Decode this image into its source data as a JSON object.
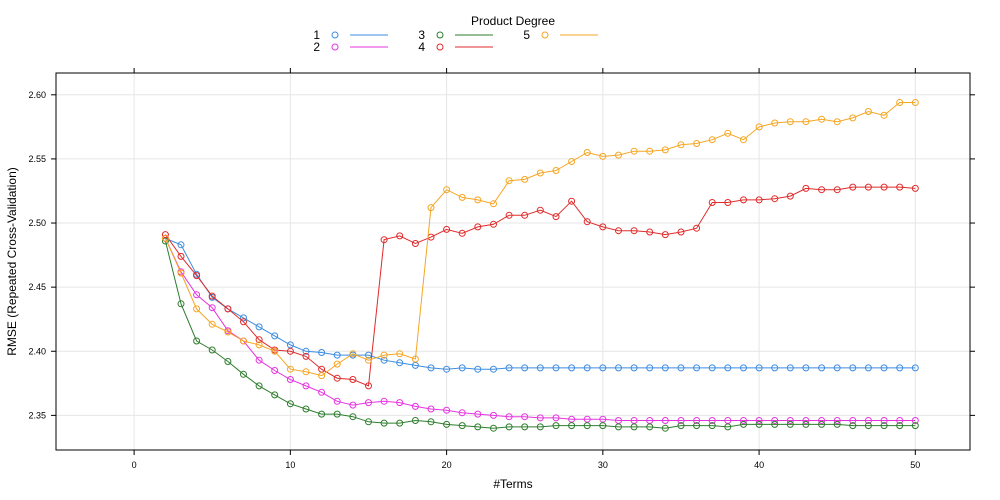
{
  "chart_data": {
    "type": "line",
    "xlabel": "#Terms",
    "ylabel": "RMSE (Repeated Cross-Validation)",
    "xlim": [
      -5,
      53.5
    ],
    "ylim": [
      2.323,
      2.617
    ],
    "x_ticks": [
      0,
      10,
      20,
      30,
      40,
      50
    ],
    "y_ticks": [
      2.35,
      2.4,
      2.45,
      2.5,
      2.55,
      2.6
    ],
    "x_tick_labels": [
      "0",
      "10",
      "20",
      "30",
      "40",
      "50"
    ],
    "y_tick_labels": [
      "2.35",
      "2.40",
      "2.45",
      "2.50",
      "2.55",
      "2.60"
    ],
    "grid": true,
    "legend": {
      "title": "Product Degree",
      "placement": "top"
    },
    "series": [
      {
        "name": "1",
        "color": "#3c8ce0",
        "x": [
          2,
          3,
          4,
          5,
          6,
          7,
          8,
          9,
          10,
          11,
          12,
          13,
          14,
          15,
          16,
          17,
          18,
          19,
          20,
          21,
          22,
          23,
          24,
          25,
          26,
          27,
          28,
          29,
          30,
          31,
          32,
          33,
          34,
          35,
          36,
          37,
          38,
          39,
          40,
          41,
          42,
          43,
          44,
          45,
          46,
          47,
          48,
          49,
          50
        ],
        "values": [
          2.488,
          2.483,
          2.46,
          2.442,
          2.433,
          2.426,
          2.419,
          2.412,
          2.405,
          2.4,
          2.399,
          2.397,
          2.397,
          2.397,
          2.393,
          2.391,
          2.389,
          2.387,
          2.386,
          2.387,
          2.386,
          2.386,
          2.387,
          2.387,
          2.387,
          2.387,
          2.387,
          2.387,
          2.387,
          2.387,
          2.387,
          2.387,
          2.387,
          2.387,
          2.387,
          2.387,
          2.387,
          2.387,
          2.387,
          2.387,
          2.387,
          2.387,
          2.387,
          2.387,
          2.387,
          2.387,
          2.387,
          2.387,
          2.387
        ]
      },
      {
        "name": "2",
        "color": "#e633e0",
        "x": [
          2,
          3,
          4,
          5,
          6,
          7,
          8,
          9,
          10,
          11,
          12,
          13,
          14,
          15,
          16,
          17,
          18,
          19,
          20,
          21,
          22,
          23,
          24,
          25,
          26,
          27,
          28,
          29,
          30,
          31,
          32,
          33,
          34,
          35,
          36,
          37,
          38,
          39,
          40,
          41,
          42,
          43,
          44,
          45,
          46,
          47,
          48,
          49,
          50
        ],
        "values": [
          2.488,
          2.462,
          2.444,
          2.434,
          2.416,
          2.408,
          2.393,
          2.385,
          2.378,
          2.373,
          2.368,
          2.361,
          2.358,
          2.36,
          2.361,
          2.36,
          2.357,
          2.355,
          2.354,
          2.352,
          2.351,
          2.35,
          2.349,
          2.349,
          2.348,
          2.348,
          2.347,
          2.347,
          2.347,
          2.346,
          2.346,
          2.346,
          2.346,
          2.346,
          2.346,
          2.346,
          2.346,
          2.346,
          2.346,
          2.346,
          2.346,
          2.346,
          2.346,
          2.346,
          2.346,
          2.346,
          2.346,
          2.346,
          2.346
        ]
      },
      {
        "name": "3",
        "color": "#2e7d2e",
        "x": [
          2,
          3,
          4,
          5,
          6,
          7,
          8,
          9,
          10,
          11,
          12,
          13,
          14,
          15,
          16,
          17,
          18,
          19,
          20,
          21,
          22,
          23,
          24,
          25,
          26,
          27,
          28,
          29,
          30,
          31,
          32,
          33,
          34,
          35,
          36,
          37,
          38,
          39,
          40,
          41,
          42,
          43,
          44,
          45,
          46,
          47,
          48,
          49,
          50
        ],
        "values": [
          2.486,
          2.437,
          2.408,
          2.401,
          2.392,
          2.382,
          2.373,
          2.366,
          2.359,
          2.355,
          2.351,
          2.351,
          2.349,
          2.345,
          2.344,
          2.344,
          2.346,
          2.345,
          2.343,
          2.342,
          2.341,
          2.34,
          2.341,
          2.341,
          2.341,
          2.342,
          2.342,
          2.342,
          2.342,
          2.341,
          2.341,
          2.341,
          2.34,
          2.342,
          2.342,
          2.342,
          2.341,
          2.343,
          2.343,
          2.343,
          2.343,
          2.343,
          2.343,
          2.343,
          2.342,
          2.342,
          2.342,
          2.342,
          2.342
        ]
      },
      {
        "name": "4",
        "color": "#e02b2b",
        "x": [
          2,
          3,
          4,
          5,
          6,
          7,
          8,
          9,
          10,
          11,
          12,
          13,
          14,
          15,
          16,
          17,
          18,
          19,
          20,
          21,
          22,
          23,
          24,
          25,
          26,
          27,
          28,
          29,
          30,
          31,
          32,
          33,
          34,
          35,
          36,
          37,
          38,
          39,
          40,
          41,
          42,
          43,
          44,
          45,
          46,
          47,
          48,
          49,
          50
        ],
        "values": [
          2.491,
          2.474,
          2.459,
          2.443,
          2.433,
          2.423,
          2.409,
          2.401,
          2.4,
          2.396,
          2.386,
          2.379,
          2.378,
          2.373,
          2.487,
          2.49,
          2.484,
          2.489,
          2.495,
          2.492,
          2.497,
          2.499,
          2.506,
          2.506,
          2.51,
          2.505,
          2.517,
          2.501,
          2.497,
          2.494,
          2.494,
          2.493,
          2.491,
          2.493,
          2.496,
          2.516,
          2.516,
          2.518,
          2.518,
          2.519,
          2.521,
          2.527,
          2.526,
          2.526,
          2.528,
          2.528,
          2.528,
          2.528,
          2.527
        ]
      },
      {
        "name": "5",
        "color": "#f5a623",
        "x": [
          2,
          3,
          4,
          5,
          6,
          7,
          8,
          9,
          10,
          11,
          12,
          13,
          14,
          15,
          16,
          17,
          18,
          19,
          20,
          21,
          22,
          23,
          24,
          25,
          26,
          27,
          28,
          29,
          30,
          31,
          32,
          33,
          34,
          35,
          36,
          37,
          38,
          39,
          40,
          41,
          42,
          43,
          44,
          45,
          46,
          47,
          48,
          49,
          50
        ],
        "values": [
          2.488,
          2.461,
          2.433,
          2.421,
          2.415,
          2.408,
          2.405,
          2.4,
          2.386,
          2.384,
          2.381,
          2.39,
          2.398,
          2.393,
          2.397,
          2.398,
          2.394,
          2.512,
          2.526,
          2.52,
          2.518,
          2.515,
          2.533,
          2.534,
          2.539,
          2.541,
          2.548,
          2.555,
          2.552,
          2.553,
          2.556,
          2.556,
          2.557,
          2.561,
          2.562,
          2.565,
          2.57,
          2.565,
          2.575,
          2.578,
          2.579,
          2.579,
          2.581,
          2.579,
          2.582,
          2.587,
          2.584,
          2.594,
          2.594
        ]
      }
    ]
  }
}
